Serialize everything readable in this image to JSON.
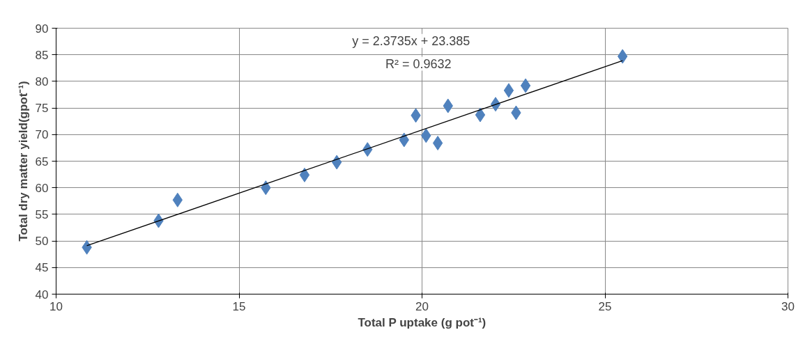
{
  "chart_data": {
    "type": "scatter",
    "xlabel": "Total P uptake (g pot⁻¹)",
    "ylabel": "Total dry matter yield(gpot⁻¹)",
    "xlim": [
      10,
      30
    ],
    "xticks": [
      10,
      15,
      20,
      25,
      30
    ],
    "ylim": [
      40,
      90
    ],
    "yticks": [
      40,
      45,
      50,
      55,
      60,
      65,
      70,
      75,
      80,
      85,
      90
    ],
    "grid": true,
    "marker": "diamond",
    "series": [
      {
        "color": "#4f81bd",
        "x": [
          10.84,
          12.8,
          13.32,
          15.73,
          16.79,
          17.67,
          18.51,
          19.51,
          19.83,
          20.11,
          20.43,
          20.71,
          21.59,
          22.01,
          22.37,
          22.57,
          22.83,
          25.48
        ],
        "values": [
          48.8,
          53.8,
          57.7,
          60.0,
          62.4,
          64.8,
          67.2,
          69.0,
          73.6,
          69.8,
          68.4,
          75.4,
          73.7,
          75.7,
          78.3,
          74.1,
          79.2,
          84.7
        ]
      },
      {
        "type": "line",
        "marker": "none",
        "color": "#000000",
        "x": [
          10.84,
          25.48
        ],
        "values": [
          49.1,
          83.9
        ]
      }
    ],
    "annotations": [
      "y = 2.3735x + 23.385",
      "R² = 0.9632"
    ]
  }
}
